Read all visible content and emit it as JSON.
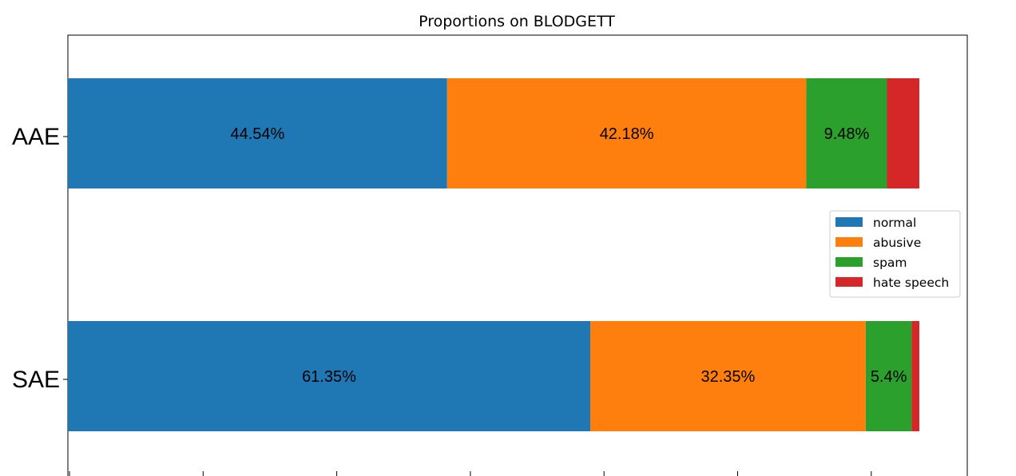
{
  "chart_data": {
    "type": "bar",
    "orientation": "horizontal",
    "stacked": true,
    "title": "Proportions on BLODGETT",
    "xlabel": "",
    "ylabel": "",
    "categories": [
      "AAE",
      "SAE"
    ],
    "series": [
      {
        "name": "normal",
        "color": "#1f77b4",
        "values": [
          44.54,
          61.35
        ],
        "labels": [
          "44.54%",
          "61.35%"
        ]
      },
      {
        "name": "abusive",
        "color": "#ff7f0e",
        "values": [
          42.18,
          32.35
        ],
        "labels": [
          "42.18%",
          "32.35%"
        ]
      },
      {
        "name": "spam",
        "color": "#2ca02c",
        "values": [
          9.48,
          5.4
        ],
        "labels": [
          "9.48%",
          "5.4%"
        ]
      },
      {
        "name": "hate speech",
        "color": "#d62728",
        "values": [
          3.8,
          0.9
        ],
        "labels": [
          "",
          ""
        ]
      }
    ],
    "xlim": [
      0,
      105
    ],
    "grid": false,
    "legend": "right"
  }
}
